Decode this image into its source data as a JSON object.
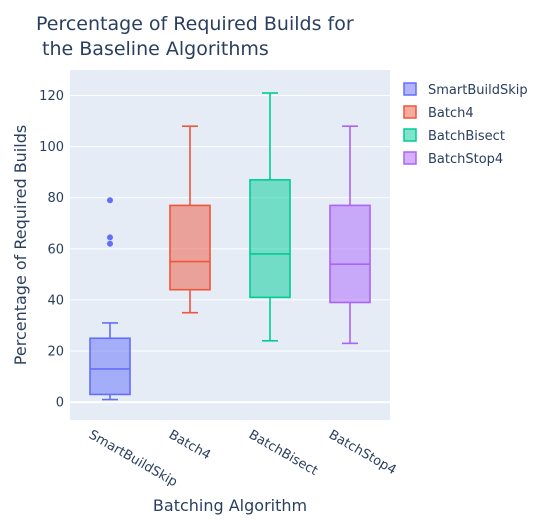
{
  "chart_data": {
    "type": "box",
    "title_lines": [
      "Percentage of Required Builds for",
      " the Baseline Algorithms"
    ],
    "xlabel": "Batching Algorithm",
    "ylabel": "Percentage of Required Builds",
    "ylim": [
      -7,
      130
    ],
    "yticks": [
      0,
      20,
      40,
      60,
      80,
      100,
      120
    ],
    "grid": true,
    "legend_position": "top-right",
    "series": [
      {
        "name": "SmartBuildSkip",
        "color": "#636efa",
        "min": 1,
        "q1": 3,
        "median": 13,
        "q3": 25,
        "max": 31,
        "outliers": [
          62,
          64.5,
          79
        ]
      },
      {
        "name": "Batch4",
        "color": "#ef553b",
        "min": 35,
        "q1": 44,
        "median": 55,
        "q3": 77,
        "max": 108,
        "outliers": []
      },
      {
        "name": "BatchBisect",
        "color": "#00cc96",
        "min": 24,
        "q1": 41,
        "median": 58,
        "q3": 87,
        "max": 121,
        "outliers": []
      },
      {
        "name": "BatchStop4",
        "color": "#ab63fa",
        "min": 23,
        "q1": 39,
        "median": 54,
        "q3": 77,
        "max": 108,
        "outliers": []
      }
    ]
  }
}
